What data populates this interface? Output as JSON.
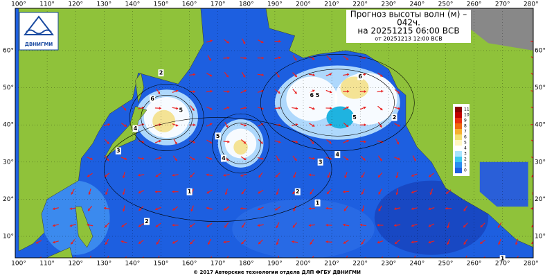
{
  "header": {
    "title_lines": [
      "Прогноз высоты волн (м) –",
      "042ч.",
      "на 20251215 06:00 ВСВ"
    ],
    "issued": "от 20251213 12:00 ВСВ"
  },
  "logo": {
    "label": "ДВНИГМИ"
  },
  "axes": {
    "longitude_labels": [
      "100°",
      "110°",
      "120°",
      "130°",
      "140°",
      "150°",
      "160°",
      "170°",
      "180°",
      "190°",
      "200°",
      "210°",
      "220°",
      "230°",
      "240°",
      "250°",
      "260°",
      "270°",
      "280°"
    ],
    "latitude_labels": [
      "60°",
      "50°",
      "40°",
      "30°",
      "20°",
      "10°"
    ]
  },
  "legend": {
    "labels": [
      "11",
      "10",
      "9",
      "8",
      "7",
      "6",
      "5",
      "4",
      "3",
      "2",
      "1",
      "0"
    ]
  },
  "contour_labels": [
    "2",
    "6",
    "5",
    "4",
    "3",
    "5",
    "4",
    "6",
    "5",
    "6",
    "5",
    "4",
    "3",
    "2",
    "1",
    "2",
    "1",
    "2",
    "1"
  ],
  "footer": {
    "text": "© 2017 Авторские технологии отдела ДЛП ФГБУ ДВНИГМИ"
  }
}
